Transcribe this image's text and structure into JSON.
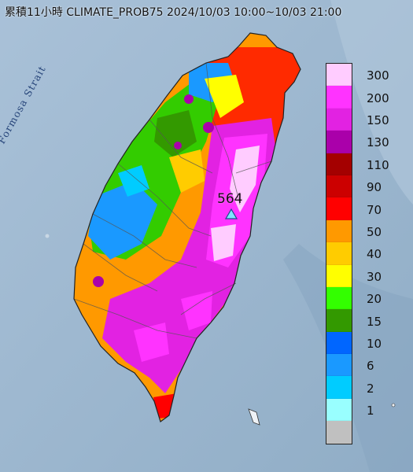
{
  "title": "累積11小時 CLIMATE_PROB75 2024/10/03 10:00~10/03 21:00",
  "strait_label": "Formosa Strait",
  "peak": {
    "value": "564",
    "marker_icon": "triangle-marker-icon"
  },
  "legend": {
    "colors": [
      "#ffccff",
      "#ff33ff",
      "#e222e2",
      "#aa00aa",
      "#a40000",
      "#cc0000",
      "#ff0000",
      "#ff9900",
      "#ffcc00",
      "#ffff00",
      "#33ff00",
      "#339900",
      "#0066ff",
      "#1a99ff",
      "#00ccff",
      "#99ffff",
      "#c0c0c0"
    ],
    "labels": [
      "300",
      "200",
      "150",
      "130",
      "110",
      "90",
      "70",
      "50",
      "40",
      "30",
      "20",
      "15",
      "10",
      "6",
      "2",
      "1"
    ]
  }
}
